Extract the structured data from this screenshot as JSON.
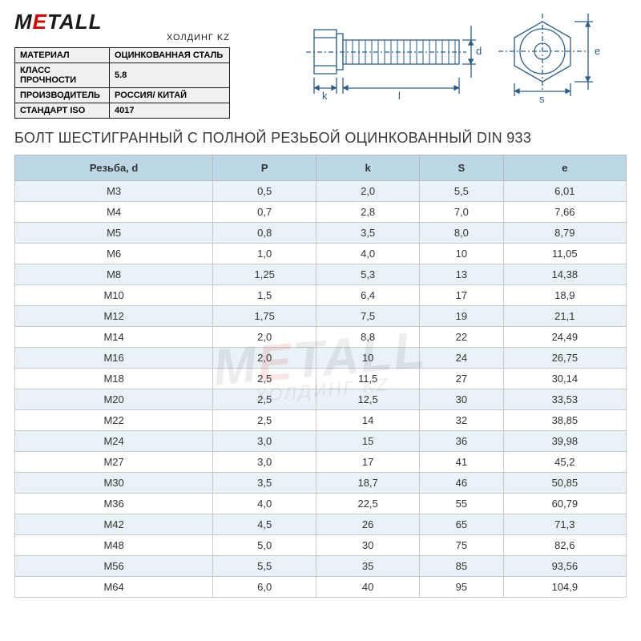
{
  "logo": {
    "primary_left": "M",
    "primary_accent": "E",
    "primary_right": "TALL",
    "subtitle": "ХОЛДИНГ KZ"
  },
  "properties": {
    "rows": [
      {
        "label": "МАТЕРИАЛ",
        "value": "ОЦИНКОВАННАЯ СТАЛЬ"
      },
      {
        "label": "КЛАСС ПРОЧНОСТИ",
        "value": "5.8"
      },
      {
        "label": "ПРОИЗВОДИТЕЛЬ",
        "value": "РОССИЯ/ КИТАЙ"
      },
      {
        "label": "СТАНДАРТ ISO",
        "value": "4017"
      }
    ]
  },
  "diagrams": {
    "side": {
      "dim_k": "k",
      "dim_l": "l",
      "dim_d": "d"
    },
    "top": {
      "dim_s": "s",
      "dim_e": "e"
    }
  },
  "title": "БОЛТ ШЕСТИГРАННЫЙ С ПОЛНОЙ РЕЗЬБОЙ ОЦИНКОВАННЫЙ DIN 933",
  "spec": {
    "columns": [
      "Резьба, d",
      "P",
      "k",
      "S",
      "e"
    ],
    "rows": [
      [
        "М3",
        "0,5",
        "2,0",
        "5,5",
        "6,01"
      ],
      [
        "М4",
        "0,7",
        "2,8",
        "7,0",
        "7,66"
      ],
      [
        "М5",
        "0,8",
        "3,5",
        "8,0",
        "8,79"
      ],
      [
        "М6",
        "1,0",
        "4,0",
        "10",
        "11,05"
      ],
      [
        "М8",
        "1,25",
        "5,3",
        "13",
        "14,38"
      ],
      [
        "М10",
        "1,5",
        "6,4",
        "17",
        "18,9"
      ],
      [
        "М12",
        "1,75",
        "7,5",
        "19",
        "21,1"
      ],
      [
        "М14",
        "2,0",
        "8,8",
        "22",
        "24,49"
      ],
      [
        "М16",
        "2,0",
        "10",
        "24",
        "26,75"
      ],
      [
        "М18",
        "2,5",
        "11,5",
        "27",
        "30,14"
      ],
      [
        "М20",
        "2,5",
        "12,5",
        "30",
        "33,53"
      ],
      [
        "М22",
        "2,5",
        "14",
        "32",
        "38,85"
      ],
      [
        "М24",
        "3,0",
        "15",
        "36",
        "39,98"
      ],
      [
        "М27",
        "3,0",
        "17",
        "41",
        "45,2"
      ],
      [
        "М30",
        "3,5",
        "18,7",
        "46",
        "50,85"
      ],
      [
        "М36",
        "4,0",
        "22,5",
        "55",
        "60,79"
      ],
      [
        "М42",
        "4,5",
        "26",
        "65",
        "71,3"
      ],
      [
        "М48",
        "5,0",
        "30",
        "75",
        "82,6"
      ],
      [
        "М56",
        "5,5",
        "35",
        "85",
        "93,56"
      ],
      [
        "М64",
        "6,0",
        "40",
        "95",
        "104,9"
      ]
    ],
    "header_bg": "#bcd8e6",
    "row_odd_bg": "#e8f2f7",
    "row_even_bg": "#ffffff",
    "border_color": "#c8c8c8",
    "text_color": "#333333",
    "font_size_pt": 10
  },
  "watermark": {
    "primary_left": "M",
    "primary_accent": "E",
    "primary_right": "TALL",
    "subtitle": "ХОЛДИНГ KZ"
  }
}
